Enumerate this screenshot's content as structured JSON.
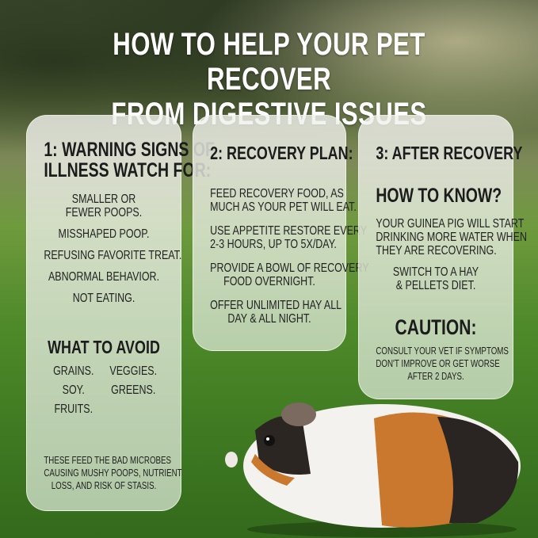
{
  "title": {
    "line1": "HOW TO HELP YOUR PET RECOVER",
    "line2": "FROM DIGESTIVE ISSUES"
  },
  "card1": {
    "heading1": "1: WARNING SIGNS OF",
    "heading2": "ILLNESS WATCH FOR:",
    "signs": [
      "SMALLER OR",
      "FEWER POOPS.",
      "MISSHAPED POOP.",
      "REFUSING FAVORITE TREAT.",
      "ABNORMAL BEHAVIOR.",
      "NOT EATING."
    ],
    "avoid_heading": "WHAT TO AVOID",
    "avoid": [
      "GRAINS.",
      "VEGGIES.",
      "SOY.",
      "GREENS.",
      "FRUITS."
    ],
    "note": [
      "THESE FEED THE BAD MICROBES",
      "CAUSING MUSHY POOPS, NUTRIENT",
      "LOSS, AND RISK OF STASIS."
    ]
  },
  "card2": {
    "heading": "2: RECOVERY PLAN:",
    "items": [
      [
        "FEED RECOVERY FOOD, AS",
        "MUCH AS YOUR PET WILL EAT."
      ],
      [
        "USE APPETITE RESTORE EVERY",
        "2-3 HOURS, UP TO 5X/DAY."
      ],
      [
        "PROVIDE A BOWL OF RECOVERY",
        "FOOD OVERNIGHT."
      ],
      [
        "OFFER UNLIMITED HAY ALL",
        "DAY & ALL NIGHT."
      ]
    ]
  },
  "card3": {
    "heading": "3: AFTER RECOVERY",
    "subheading": "HOW TO KNOW?",
    "know": [
      "YOUR GUINEA PIG WILL START",
      "DRINKING MORE WATER WHEN",
      "THEY ARE RECOVERING."
    ],
    "switch": [
      "SWITCH TO A HAY",
      "& PELLETS DIET."
    ],
    "caution_heading": "CAUTION:",
    "caution": [
      "CONSULT YOUR VET IF SYMPTOMS",
      "DON'T IMPROVE OR GET WORSE",
      "AFTER 2 DAYS."
    ]
  }
}
